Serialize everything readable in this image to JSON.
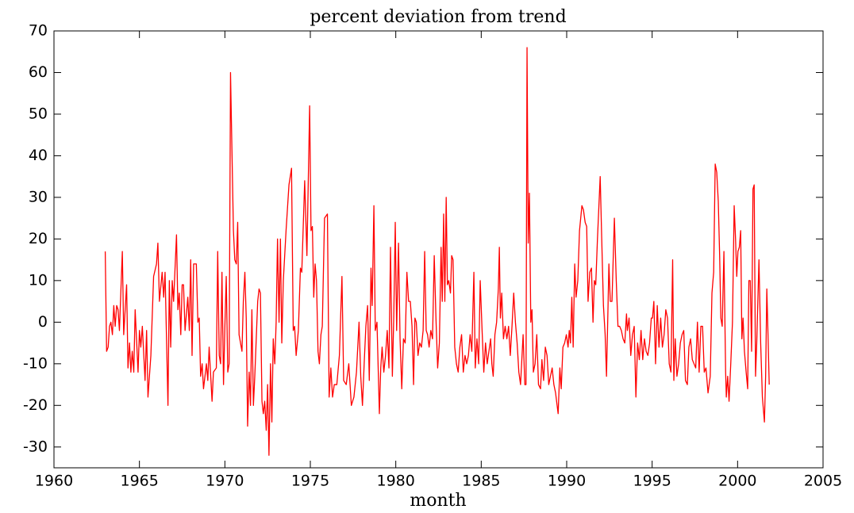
{
  "chart_data": {
    "type": "line",
    "title": "percent deviation from trend",
    "x_label": "month",
    "xlim": [
      1960,
      2005
    ],
    "xticks": [
      1960,
      1965,
      1970,
      1975,
      1980,
      1985,
      1990,
      1995,
      2000,
      2005
    ],
    "ylim": [
      -35,
      70
    ],
    "yticks": [
      -30,
      -20,
      -10,
      0,
      10,
      20,
      30,
      40,
      50,
      60,
      70
    ],
    "grid": false,
    "x": [
      1963,
      1963.08,
      1963.17,
      1963.25,
      1963.33,
      1963.42,
      1963.5,
      1963.58,
      1963.67,
      1963.75,
      1963.83,
      1964,
      1964.08,
      1964.25,
      1964.33,
      1964.42,
      1964.5,
      1964.58,
      1964.67,
      1964.75,
      1964.92,
      1965,
      1965.08,
      1965.17,
      1965.33,
      1965.42,
      1965.5,
      1965.67,
      1965.83,
      1966,
      1966.08,
      1966.17,
      1966.33,
      1966.42,
      1966.5,
      1966.67,
      1966.75,
      1966.83,
      1966.92,
      1967,
      1967.17,
      1967.25,
      1967.33,
      1967.42,
      1967.5,
      1967.58,
      1967.67,
      1967.83,
      1967.92,
      1968,
      1968.08,
      1968.17,
      1968.33,
      1968.42,
      1968.5,
      1968.58,
      1968.67,
      1968.75,
      1968.92,
      1969,
      1969.08,
      1969.25,
      1969.33,
      1969.5,
      1969.58,
      1969.67,
      1969.75,
      1969.83,
      1969.92,
      1970,
      1970.08,
      1970.17,
      1970.25,
      1970.33,
      1970.5,
      1970.58,
      1970.67,
      1970.75,
      1970.83,
      1971,
      1971.08,
      1971.17,
      1971.25,
      1971.33,
      1971.42,
      1971.5,
      1971.58,
      1971.67,
      1971.75,
      1971.92,
      1972,
      1972.08,
      1972.17,
      1972.25,
      1972.33,
      1972.42,
      1972.5,
      1972.58,
      1972.67,
      1972.75,
      1972.83,
      1972.92,
      1973,
      1973.08,
      1973.17,
      1973.25,
      1973.33,
      1973.42,
      1973.58,
      1973.75,
      1973.9,
      1974,
      1974.08,
      1974.17,
      1974.3,
      1974.42,
      1974.5,
      1974.67,
      1974.8,
      1974.96,
      1975.04,
      1975.12,
      1975.2,
      1975.28,
      1975.36,
      1975.45,
      1975.53,
      1975.62,
      1975.7,
      1975.83,
      1976,
      1976.1,
      1976.2,
      1976.3,
      1976.4,
      1976.55,
      1976.7,
      1976.85,
      1976.95,
      1977.1,
      1977.25,
      1977.4,
      1977.55,
      1977.7,
      1977.85,
      1977.95,
      1978.05,
      1978.15,
      1978.25,
      1978.35,
      1978.45,
      1978.55,
      1978.62,
      1978.72,
      1978.8,
      1978.9,
      1979.04,
      1979.12,
      1979.2,
      1979.3,
      1979.4,
      1979.5,
      1979.6,
      1979.69,
      1979.8,
      1979.88,
      1979.97,
      1980.05,
      1980.16,
      1980.25,
      1980.35,
      1980.45,
      1980.55,
      1980.65,
      1980.75,
      1980.85,
      1980.95,
      1981.04,
      1981.12,
      1981.2,
      1981.3,
      1981.4,
      1981.5,
      1981.6,
      1981.69,
      1981.78,
      1981.86,
      1981.95,
      1982.05,
      1982.15,
      1982.25,
      1982.35,
      1982.45,
      1982.55,
      1982.65,
      1982.72,
      1982.8,
      1982.87,
      1982.95,
      1983.02,
      1983.1,
      1983.2,
      1983.27,
      1983.35,
      1983.45,
      1983.55,
      1983.65,
      1983.75,
      1983.85,
      1983.95,
      1984.05,
      1984.15,
      1984.25,
      1984.35,
      1984.45,
      1984.57,
      1984.65,
      1984.75,
      1984.85,
      1984.94,
      1985.05,
      1985.15,
      1985.25,
      1985.35,
      1985.45,
      1985.55,
      1985.62,
      1985.7,
      1985.8,
      1985.9,
      1986,
      1986.06,
      1986.12,
      1986.2,
      1986.3,
      1986.4,
      1986.5,
      1986.6,
      1986.7,
      1986.8,
      1986.9,
      1987,
      1987.1,
      1987.2,
      1987.3,
      1987.45,
      1987.55,
      1987.62,
      1987.68,
      1987.75,
      1987.82,
      1987.9,
      1987.97,
      1988.05,
      1988.15,
      1988.25,
      1988.35,
      1988.47,
      1988.55,
      1988.65,
      1988.75,
      1988.85,
      1988.95,
      1989.05,
      1989.15,
      1989.25,
      1989.35,
      1989.5,
      1989.6,
      1989.68,
      1989.78,
      1989.88,
      1989.98,
      1990.08,
      1990.15,
      1990.22,
      1990.3,
      1990.38,
      1990.47,
      1990.55,
      1990.65,
      1990.75,
      1990.89,
      1990.98,
      1991.08,
      1991.17,
      1991.25,
      1991.35,
      1991.45,
      1991.54,
      1991.62,
      1991.7,
      1991.8,
      1991.96,
      1992.05,
      1992.15,
      1992.25,
      1992.33,
      1992.42,
      1992.47,
      1992.55,
      1992.65,
      1992.79,
      1992.9,
      1993,
      1993.1,
      1993.2,
      1993.3,
      1993.4,
      1993.5,
      1993.55,
      1993.65,
      1993.75,
      1993.85,
      1993.95,
      1994.05,
      1994.15,
      1994.25,
      1994.35,
      1994.45,
      1994.55,
      1994.65,
      1994.75,
      1994.85,
      1994.95,
      1995.02,
      1995.1,
      1995.2,
      1995.3,
      1995.4,
      1995.5,
      1995.6,
      1995.7,
      1995.8,
      1995.9,
      1996,
      1996.1,
      1996.2,
      1996.27,
      1996.35,
      1996.45,
      1996.55,
      1996.65,
      1996.75,
      1996.85,
      1996.95,
      1997.06,
      1997.15,
      1997.25,
      1997.35,
      1997.45,
      1997.55,
      1997.65,
      1997.75,
      1997.85,
      1997.95,
      1998.05,
      1998.15,
      1998.27,
      1998.4,
      1998.5,
      1998.6,
      1998.69,
      1998.78,
      1998.87,
      1998.95,
      1999.02,
      1999.1,
      1999.2,
      1999.3,
      1999.34,
      1999.42,
      1999.5,
      1999.6,
      1999.7,
      1999.8,
      1999.88,
      1999.95,
      2000.02,
      2000.1,
      2000.18,
      2000.25,
      2000.32,
      2000.4,
      2000.5,
      2000.59,
      2000.66,
      2000.74,
      2000.82,
      2000.9,
      2000.97,
      2001.05,
      2001.12,
      2001.25,
      2001.35,
      2001.45,
      2001.57,
      2001.64,
      2001.71,
      2001.78,
      2001.85
    ],
    "series": [
      {
        "color": "#ff0000",
        "values": [
          17,
          -7,
          -6,
          -1,
          0,
          -3,
          4,
          -1,
          4,
          3,
          -2,
          17,
          -3,
          9,
          -11,
          -5,
          -12,
          -7,
          -12,
          3,
          -12,
          -2,
          -6,
          -1,
          -14,
          -2,
          -18,
          -8,
          11,
          14,
          19,
          5,
          12,
          6,
          12,
          -20,
          10,
          -6,
          10,
          5,
          21,
          3,
          7,
          -3,
          9,
          9,
          -2,
          6,
          -2,
          15,
          -8,
          14,
          14,
          0,
          1,
          -13,
          -10,
          -16,
          -10,
          -14,
          -6,
          -19,
          -12,
          -11,
          17,
          -8,
          -10,
          12,
          -15,
          -1,
          11,
          -12,
          -10,
          60,
          22,
          15,
          14,
          24,
          -3,
          -7,
          5,
          12,
          1,
          -25,
          -12,
          -20,
          3,
          -20,
          -13,
          5,
          8,
          7,
          -19,
          -22,
          -19,
          -26,
          -15,
          -32,
          -10,
          -24,
          -4,
          -10,
          0,
          20,
          0,
          20,
          -5,
          10,
          22,
          33,
          37,
          -2,
          -1,
          -8,
          -2,
          13,
          12,
          34,
          16,
          52,
          22,
          23,
          6,
          14,
          10,
          -7,
          -10,
          -3,
          -1,
          25,
          26,
          -18,
          -11,
          -18,
          -15,
          -15,
          -8,
          11,
          -14,
          -15,
          -10,
          -20,
          -18,
          -12,
          0,
          -13,
          -20,
          -10,
          -1,
          4,
          -14,
          13,
          4,
          28,
          -2,
          0,
          -22,
          -11,
          -6,
          -12,
          -8,
          -2,
          -11,
          18,
          -13,
          1,
          24,
          -2,
          19,
          -4,
          -16,
          -4,
          -5,
          12,
          5,
          5,
          -1,
          -15,
          1,
          0,
          -8,
          -5,
          -6,
          -2,
          17,
          -2,
          -3,
          -6,
          -2,
          -4,
          16,
          1,
          -11,
          -5,
          18,
          5,
          26,
          5,
          30,
          9,
          10,
          7,
          16,
          15,
          -6,
          -10,
          -12,
          -6,
          -3,
          -12,
          -8,
          -10,
          -8,
          -3,
          -7,
          12,
          -11,
          -4,
          -10,
          10,
          -2,
          -12,
          -5,
          -10,
          -7,
          -4,
          -10,
          -13,
          -3,
          0,
          8,
          18,
          1,
          7,
          -4,
          -1,
          -4,
          -1,
          -8,
          -1,
          7,
          0,
          -5,
          -12,
          -15,
          -3,
          -15,
          -15,
          66,
          19,
          31,
          0,
          3,
          -12,
          -10,
          -3,
          -15,
          -16,
          -9,
          -14,
          -6,
          -8,
          -15,
          -13,
          -11,
          -15,
          -17,
          -22,
          -11,
          -16,
          -6,
          -5,
          -3,
          -6,
          -2,
          -5,
          6,
          -6,
          14,
          6,
          10,
          22,
          28,
          27,
          24,
          23,
          5,
          12,
          13,
          0,
          10,
          9,
          20,
          35,
          20,
          4,
          -3,
          -13,
          4,
          14,
          5,
          5,
          25,
          10,
          -1,
          -1,
          -2,
          -4,
          -5,
          2,
          -2,
          1,
          -8,
          -3,
          -1,
          -18,
          -5,
          -9,
          -2,
          -9,
          -4,
          -7,
          -8,
          -5,
          1,
          1,
          5,
          -10,
          4,
          -6,
          1,
          -6,
          -3,
          3,
          1,
          -10,
          -12,
          15,
          -14,
          -4,
          -13,
          -10,
          -5,
          -3,
          -2,
          -14,
          -15,
          -6,
          -4,
          -9,
          -10,
          -11,
          0,
          -12,
          -1,
          -1,
          -12,
          -11,
          -17,
          -13,
          7,
          12,
          38,
          36,
          29,
          16,
          1,
          -1,
          17,
          -12,
          -18,
          -13,
          -19,
          -10,
          0,
          28,
          20,
          11,
          17,
          18,
          22,
          -4,
          1,
          -7,
          -12,
          -16,
          10,
          10,
          -7,
          32,
          33,
          -13,
          -5,
          15,
          -5,
          -18,
          -24,
          -13,
          8,
          -3,
          -15
        ]
      }
    ]
  }
}
